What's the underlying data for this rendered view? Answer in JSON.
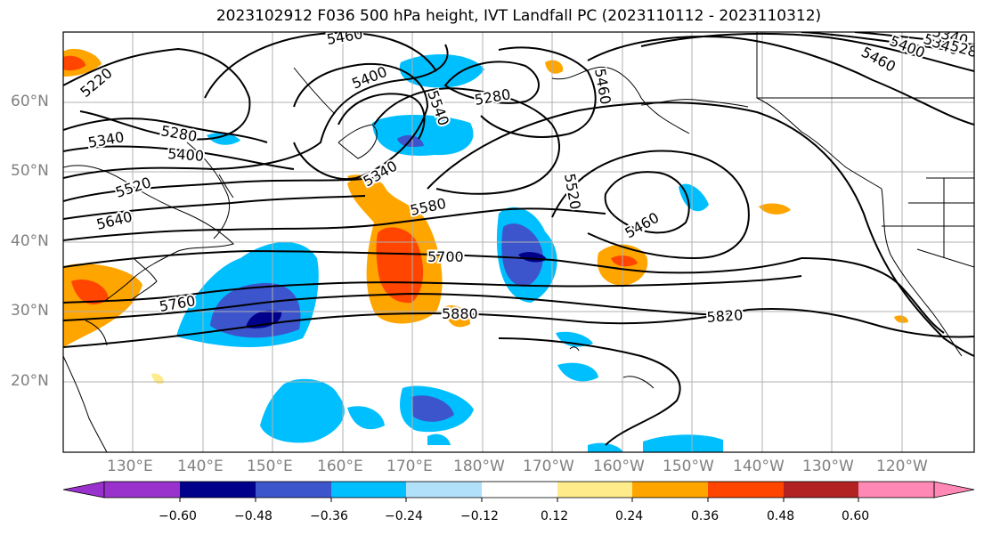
{
  "title": "2023102912 F036 500 hPa height, IVT Landfall PC (2023110112 - 2023110312)",
  "lat_labels": [
    "60°N",
    "50°N",
    "40°N",
    "30°N",
    "20°N"
  ],
  "lon_labels": [
    "130°E",
    "140°E",
    "150°E",
    "160°E",
    "170°E",
    "180°W",
    "170°W",
    "160°W",
    "150°W",
    "140°W",
    "130°W",
    "120°W"
  ],
  "contour_labels": [
    "5460",
    "5400",
    "5340",
    "5280",
    "5220",
    "5280",
    "5340",
    "5400",
    "5520",
    "5640",
    "5760",
    "5580",
    "5700",
    "5880",
    "5460",
    "5520",
    "5820",
    "5340",
    "5460",
    "5400",
    "5340",
    "5280",
    "5540",
    "5460"
  ],
  "colorbar": {
    "tick_labels": [
      "−0.60",
      "−0.48",
      "−0.36",
      "−0.24",
      "−0.12",
      "0.12",
      "0.24",
      "0.36",
      "0.48",
      "0.60"
    ],
    "colors": [
      "#9932cc",
      "#00008b",
      "#3c55cd",
      "#00bfff",
      "#b0e0fa",
      "#ffffff",
      "#ffeb8a",
      "#ffa500",
      "#ff4500",
      "#b22222",
      "#ff88b4"
    ]
  }
}
